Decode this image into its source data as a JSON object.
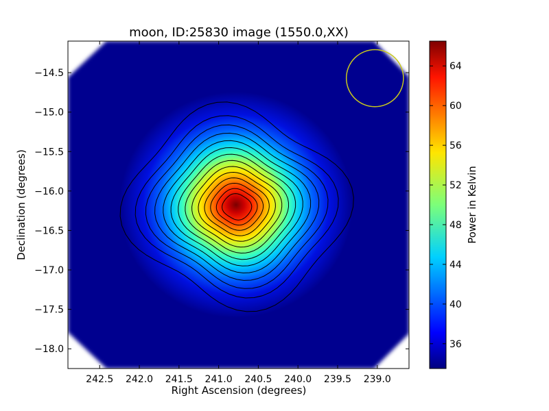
{
  "chart_data": {
    "type": "heatmap",
    "title": "moon, ID:25830 image (1550.0,XX)",
    "xlabel": "Right Ascension (degrees)",
    "ylabel": "Declination (degrees)",
    "xlim": [
      242.9,
      238.6
    ],
    "ylim": [
      -18.25,
      -14.1
    ],
    "x_ticks": [
      {
        "value": 242.5,
        "label": "242.5"
      },
      {
        "value": 242.0,
        "label": "242.0"
      },
      {
        "value": 241.5,
        "label": "241.5"
      },
      {
        "value": 241.0,
        "label": "241.0"
      },
      {
        "value": 240.5,
        "label": "240.5"
      },
      {
        "value": 240.0,
        "label": "240.0"
      },
      {
        "value": 239.5,
        "label": "239.5"
      },
      {
        "value": 239.0,
        "label": "239.0"
      }
    ],
    "y_ticks": [
      {
        "value": -14.5,
        "label": "−14.5"
      },
      {
        "value": -15.0,
        "label": "−15.0"
      },
      {
        "value": -15.5,
        "label": "−15.5"
      },
      {
        "value": -16.0,
        "label": "−16.0"
      },
      {
        "value": -16.5,
        "label": "−16.5"
      },
      {
        "value": -17.0,
        "label": "−17.0"
      },
      {
        "value": -17.5,
        "label": "−17.5"
      },
      {
        "value": -18.0,
        "label": "−18.0"
      }
    ],
    "colormap": "jet",
    "colorbar": {
      "label": "Power in Kelvin",
      "range": [
        33.5,
        66.5
      ],
      "ticks": [
        {
          "value": 36,
          "label": "36"
        },
        {
          "value": 40,
          "label": "40"
        },
        {
          "value": 44,
          "label": "44"
        },
        {
          "value": 48,
          "label": "48"
        },
        {
          "value": 52,
          "label": "52"
        },
        {
          "value": 56,
          "label": "56"
        },
        {
          "value": 60,
          "label": "60"
        },
        {
          "value": 64,
          "label": "64"
        }
      ]
    },
    "source": {
      "ra": 240.77,
      "dec": -16.2,
      "peak": 66.5,
      "background": 33.7
    },
    "contour_levels": [
      36.5,
      39.5,
      42.5,
      44.5,
      46.5,
      48.5,
      50.5,
      52.5,
      54.5,
      56.5,
      58.5,
      60.5,
      62.5,
      64.5
    ],
    "beam": {
      "ra": 239.03,
      "dec": -14.57,
      "radius_deg": 0.36,
      "color": "#c8c81e"
    },
    "grid": false
  }
}
